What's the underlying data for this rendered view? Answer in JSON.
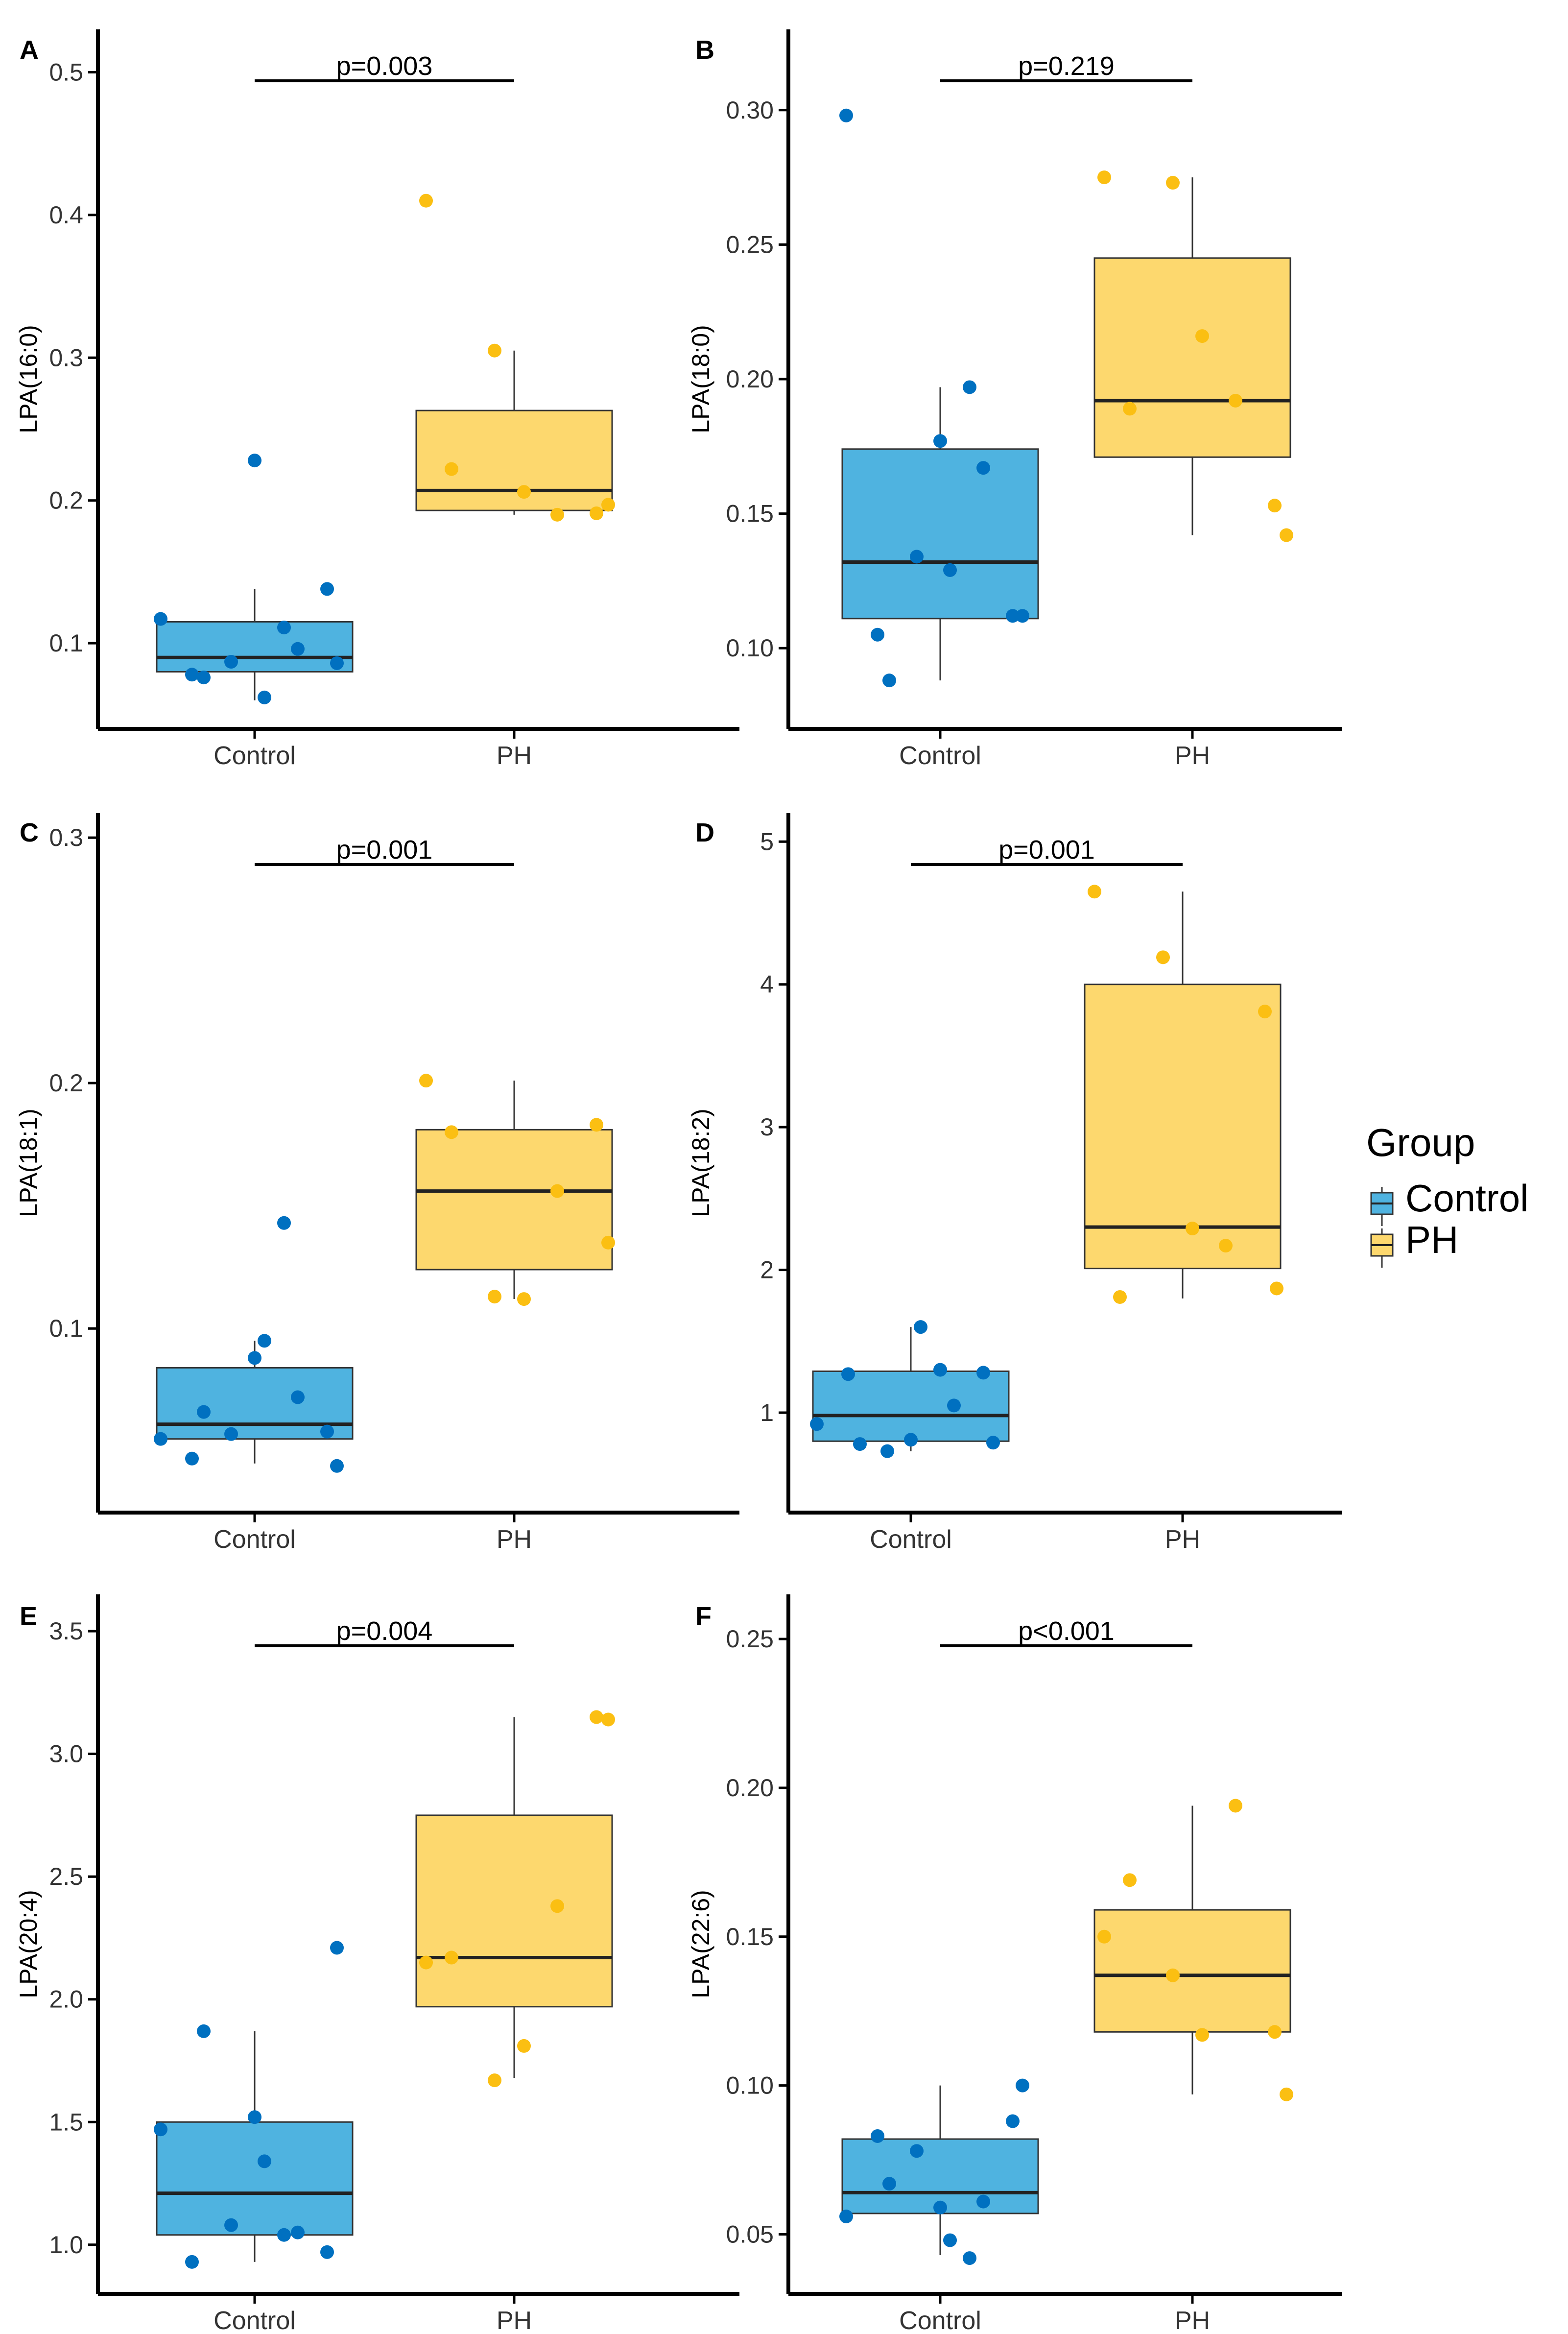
{
  "figure": {
    "legend": {
      "title": "Group",
      "items": [
        {
          "label": "Control",
          "fill": "#4fb3e0"
        },
        {
          "label": "PH",
          "fill": "#fdd86e"
        }
      ]
    },
    "colors": {
      "control_box": "#4fb3e0",
      "control_point": "#0070c0",
      "ph_box": "#fdd86e",
      "ph_point": "#fbbf12",
      "axis": "#000000",
      "median": "#222222"
    }
  },
  "chart_data": [
    {
      "type": "box",
      "panel": "A",
      "ylabel": "LPA(16:0)",
      "categories": [
        "Control",
        "PH"
      ],
      "ylim": [
        0.04,
        0.53
      ],
      "yticks": [
        0.1,
        0.2,
        0.3,
        0.4,
        0.5
      ],
      "ytick_labels": [
        "0.1",
        "0.2",
        "0.3",
        "0.4",
        "0.5"
      ],
      "pvalue": "p=0.003",
      "boxes": [
        {
          "group": "Control",
          "q1": 0.08,
          "median": 0.09,
          "q3": 0.115,
          "whisker_low": 0.06,
          "whisker_high": 0.138
        },
        {
          "group": "PH",
          "q1": 0.193,
          "median": 0.207,
          "q3": 0.263,
          "whisker_low": 0.19,
          "whisker_high": 0.305
        }
      ],
      "points": {
        "Control": [
          0.117,
          0.078,
          0.076,
          0.087,
          0.228,
          0.062,
          0.111,
          0.096,
          0.138,
          0.086
        ],
        "PH": [
          0.41,
          0.305,
          0.206,
          0.19,
          0.222,
          0.191,
          0.197
        ]
      }
    },
    {
      "type": "box",
      "panel": "B",
      "ylabel": "LPA(18:0)",
      "categories": [
        "Control",
        "PH"
      ],
      "ylim": [
        0.07,
        0.33
      ],
      "yticks": [
        0.1,
        0.15,
        0.2,
        0.25,
        0.3
      ],
      "ytick_labels": [
        "0.10",
        "0.15",
        "0.20",
        "0.25",
        "0.30"
      ],
      "pvalue": "p=0.219",
      "boxes": [
        {
          "group": "Control",
          "q1": 0.111,
          "median": 0.132,
          "q3": 0.174,
          "whisker_low": 0.088,
          "whisker_high": 0.197
        },
        {
          "group": "PH",
          "q1": 0.171,
          "median": 0.192,
          "q3": 0.245,
          "whisker_low": 0.142,
          "whisker_high": 0.275
        }
      ],
      "points": {
        "Control": [
          0.298,
          0.105,
          0.088,
          0.134,
          0.177,
          0.129,
          0.197,
          0.167,
          0.112,
          0.112
        ],
        "PH": [
          0.275,
          0.273,
          0.216,
          0.192,
          0.189,
          0.153,
          0.142
        ]
      }
    },
    {
      "type": "box",
      "panel": "C",
      "ylabel": "LPA(18:1)",
      "categories": [
        "Control",
        "PH"
      ],
      "ylim": [
        0.025,
        0.31
      ],
      "yticks": [
        0.1,
        0.2,
        0.3
      ],
      "ytick_labels": [
        "0.1",
        "0.2",
        "0.3"
      ],
      "pvalue": "p=0.001",
      "boxes": [
        {
          "group": "Control",
          "q1": 0.055,
          "median": 0.061,
          "q3": 0.084,
          "whisker_low": 0.045,
          "whisker_high": 0.095
        },
        {
          "group": "PH",
          "q1": 0.124,
          "median": 0.156,
          "q3": 0.181,
          "whisker_low": 0.112,
          "whisker_high": 0.201
        }
      ],
      "points": {
        "Control": [
          0.055,
          0.047,
          0.066,
          0.057,
          0.088,
          0.095,
          0.143,
          0.072,
          0.058,
          0.044
        ],
        "PH": [
          0.201,
          0.113,
          0.112,
          0.156,
          0.18,
          0.183,
          0.135
        ]
      }
    },
    {
      "type": "box",
      "panel": "D",
      "ylabel": "LPA(18:2)",
      "categories": [
        "Control",
        "PH"
      ],
      "ylim": [
        0.3,
        5.2
      ],
      "yticks": [
        1,
        2,
        3,
        4,
        5
      ],
      "ytick_labels": [
        "1",
        "2",
        "3",
        "4",
        "5"
      ],
      "pvalue": "p=0.001",
      "boxes": [
        {
          "group": "Control",
          "q1": 0.8,
          "median": 0.98,
          "q3": 1.29,
          "whisker_low": 0.73,
          "whisker_high": 1.6
        },
        {
          "group": "PH",
          "q1": 2.01,
          "median": 2.3,
          "q3": 4.0,
          "whisker_low": 1.8,
          "whisker_high": 4.65
        }
      ],
      "points": {
        "Control": [
          0.92,
          1.27,
          0.78,
          0.73,
          0.81,
          1.6,
          1.3,
          1.05,
          1.28,
          0.79
        ],
        "PH": [
          4.65,
          4.19,
          2.29,
          2.17,
          1.81,
          3.81,
          1.87
        ]
      }
    },
    {
      "type": "box",
      "panel": "E",
      "ylabel": "LPA(20:4)",
      "categories": [
        "Control",
        "PH"
      ],
      "ylim": [
        0.8,
        3.65
      ],
      "yticks": [
        1.0,
        1.5,
        2.0,
        2.5,
        3.0,
        3.5
      ],
      "ytick_labels": [
        "1.0",
        "1.5",
        "2.0",
        "2.5",
        "3.0",
        "3.5"
      ],
      "pvalue": "p=0.004",
      "boxes": [
        {
          "group": "Control",
          "q1": 1.04,
          "median": 1.21,
          "q3": 1.5,
          "whisker_low": 0.93,
          "whisker_high": 1.87
        },
        {
          "group": "PH",
          "q1": 1.97,
          "median": 2.17,
          "q3": 2.75,
          "whisker_low": 1.68,
          "whisker_high": 3.15
        }
      ],
      "points": {
        "Control": [
          1.47,
          0.93,
          1.87,
          1.08,
          1.52,
          1.34,
          1.04,
          1.05,
          0.97,
          2.21
        ],
        "PH": [
          2.15,
          1.67,
          1.81,
          2.38,
          2.17,
          3.15,
          3.14
        ]
      }
    },
    {
      "type": "box",
      "panel": "F",
      "ylabel": "LPA(22:6)",
      "categories": [
        "Control",
        "PH"
      ],
      "ylim": [
        0.03,
        0.265
      ],
      "yticks": [
        0.05,
        0.1,
        0.15,
        0.2,
        0.25
      ],
      "ytick_labels": [
        "0.05",
        "0.10",
        "0.15",
        "0.20",
        "0.25"
      ],
      "pvalue": "p<0.001",
      "boxes": [
        {
          "group": "Control",
          "q1": 0.057,
          "median": 0.064,
          "q3": 0.082,
          "whisker_low": 0.043,
          "whisker_high": 0.1
        },
        {
          "group": "PH",
          "q1": 0.118,
          "median": 0.137,
          "q3": 0.159,
          "whisker_low": 0.097,
          "whisker_high": 0.194
        }
      ],
      "points": {
        "Control": [
          0.056,
          0.083,
          0.067,
          0.078,
          0.059,
          0.048,
          0.042,
          0.061,
          0.088,
          0.1
        ],
        "PH": [
          0.15,
          0.137,
          0.117,
          0.194,
          0.169,
          0.118,
          0.097
        ]
      }
    }
  ]
}
